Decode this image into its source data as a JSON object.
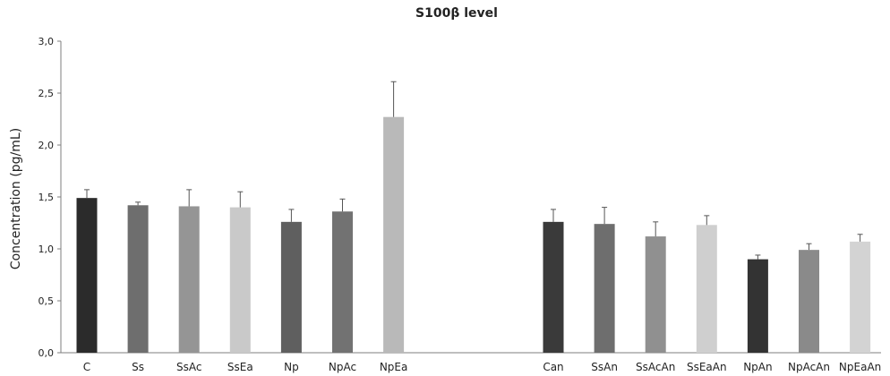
{
  "chart_data": {
    "type": "bar",
    "title": "S100β level",
    "ylabel": "Concentration (pg/mL)",
    "xlabel": "",
    "ylim": [
      0,
      3
    ],
    "yticks": [
      "0,0",
      "0,5",
      "1,0",
      "1,5",
      "2,0",
      "2,5",
      "3,0"
    ],
    "grid": false,
    "legend": "none",
    "error_bars": true,
    "groups": [
      {
        "categories": [
          "C",
          "Ss",
          "SsAc",
          "SsEa",
          "Np",
          "NpAc",
          "NpEa"
        ],
        "values": [
          1.49,
          1.42,
          1.41,
          1.4,
          1.26,
          1.36,
          2.27
        ],
        "errors": [
          0.08,
          0.03,
          0.16,
          0.15,
          0.12,
          0.12,
          0.34
        ],
        "colors": [
          "#2b2b2b",
          "#6e6e6e",
          "#959595",
          "#c9c9c9",
          "#5f5f5f",
          "#727272",
          "#b9b9b9"
        ]
      },
      {
        "categories": [
          "Can",
          "SsAn",
          "SsAcAn",
          "SsEaAn",
          "NpAn",
          "NpAcAn",
          "NpEaAn"
        ],
        "values": [
          1.26,
          1.24,
          1.12,
          1.23,
          0.9,
          0.99,
          1.07
        ],
        "errors": [
          0.12,
          0.16,
          0.14,
          0.09,
          0.04,
          0.06,
          0.07
        ],
        "colors": [
          "#3a3a3a",
          "#6e6e6e",
          "#909090",
          "#cfcfcf",
          "#333333",
          "#8a8a8a",
          "#d3d3d3"
        ]
      }
    ]
  }
}
